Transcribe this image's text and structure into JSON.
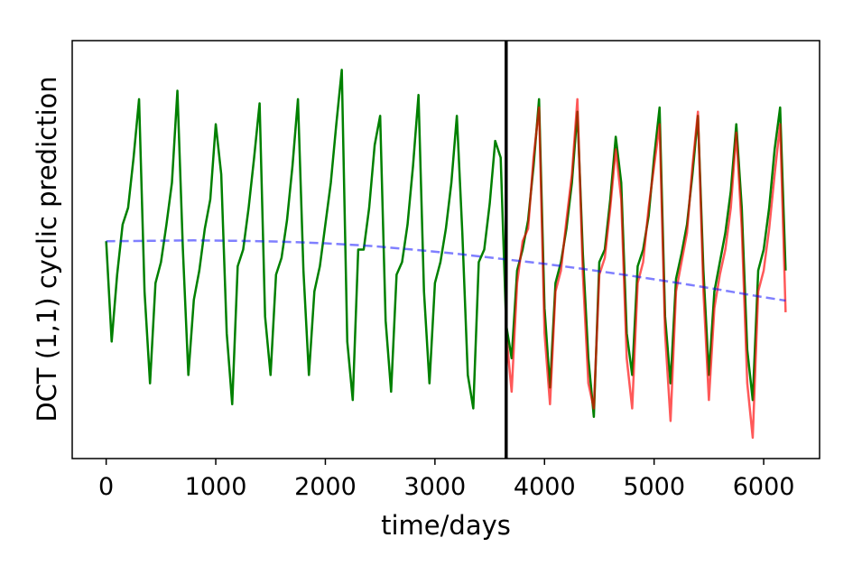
{
  "chart_data": {
    "type": "line",
    "xlabel": "time/days",
    "ylabel": "DCT (1,1) cyclic prediction",
    "xlim": [
      -310,
      6510
    ],
    "ylim": [
      0,
      1
    ],
    "xticks": [
      0,
      1000,
      2000,
      3000,
      4000,
      5000,
      6000
    ],
    "vline": 3650,
    "series": [
      {
        "color": "#008000",
        "opacity": 1,
        "style": "solid",
        "x": [
          0,
          50,
          100,
          150,
          200,
          250,
          300,
          350,
          400,
          450,
          500,
          550,
          600,
          650,
          700,
          750,
          800,
          850,
          900,
          950,
          1000,
          1050,
          1100,
          1150,
          1200,
          1250,
          1300,
          1350,
          1400,
          1450,
          1500,
          1550,
          1600,
          1650,
          1700,
          1750,
          1800,
          1850,
          1900,
          1950,
          2000,
          2050,
          2100,
          2150,
          2200,
          2250,
          2300,
          2350,
          2400,
          2450,
          2500,
          2550,
          2600,
          2650,
          2700,
          2750,
          2800,
          2850,
          2900,
          2950,
          3000,
          3050,
          3100,
          3150,
          3200,
          3250,
          3300,
          3350,
          3400,
          3450,
          3500,
          3550,
          3600,
          3650,
          3700,
          3750,
          3800,
          3850,
          3900,
          3950,
          4000,
          4050,
          4100,
          4150,
          4200,
          4250,
          4300,
          4350,
          4400,
          4450,
          4500,
          4550,
          4600,
          4650,
          4700,
          4750,
          4800,
          4850,
          4900,
          4950,
          5000,
          5050,
          5100,
          5150,
          5200,
          5250,
          5300,
          5350,
          5400,
          5450,
          5500,
          5550,
          5600,
          5650,
          5700,
          5750,
          5800,
          5850,
          5900,
          5950,
          6000,
          6050,
          6100,
          6150,
          6200
        ],
        "values": [
          0.52,
          0.28,
          0.44,
          0.56,
          0.6,
          0.72,
          0.86,
          0.4,
          0.18,
          0.42,
          0.47,
          0.56,
          0.66,
          0.88,
          0.5,
          0.2,
          0.38,
          0.45,
          0.55,
          0.62,
          0.8,
          0.68,
          0.3,
          0.13,
          0.46,
          0.5,
          0.6,
          0.72,
          0.85,
          0.34,
          0.2,
          0.44,
          0.48,
          0.57,
          0.7,
          0.86,
          0.45,
          0.2,
          0.4,
          0.46,
          0.56,
          0.66,
          0.8,
          0.93,
          0.28,
          0.14,
          0.5,
          0.5,
          0.6,
          0.75,
          0.82,
          0.33,
          0.16,
          0.44,
          0.47,
          0.56,
          0.7,
          0.87,
          0.4,
          0.18,
          0.42,
          0.47,
          0.55,
          0.66,
          0.82,
          0.54,
          0.2,
          0.12,
          0.47,
          0.5,
          0.61,
          0.76,
          0.72,
          0.32,
          0.24,
          0.45,
          0.5,
          0.57,
          0.7,
          0.86,
          0.36,
          0.17,
          0.42,
          0.47,
          0.55,
          0.66,
          0.83,
          0.49,
          0.24,
          0.1,
          0.47,
          0.5,
          0.62,
          0.77,
          0.66,
          0.3,
          0.2,
          0.46,
          0.5,
          0.58,
          0.72,
          0.84,
          0.34,
          0.18,
          0.43,
          0.49,
          0.56,
          0.68,
          0.82,
          0.45,
          0.2,
          0.4,
          0.47,
          0.54,
          0.64,
          0.8,
          0.6,
          0.26,
          0.14,
          0.45,
          0.5,
          0.6,
          0.74,
          0.84,
          0.45
        ]
      },
      {
        "color": "#ff0000",
        "opacity": 0.65,
        "style": "solid",
        "x": [
          3650,
          3700,
          3750,
          3800,
          3850,
          3900,
          3950,
          4000,
          4050,
          4100,
          4150,
          4200,
          4250,
          4300,
          4350,
          4400,
          4450,
          4500,
          4550,
          4600,
          4650,
          4700,
          4750,
          4800,
          4850,
          4900,
          4950,
          5000,
          5050,
          5100,
          5150,
          5200,
          5250,
          5300,
          5350,
          5400,
          5450,
          5500,
          5550,
          5600,
          5650,
          5700,
          5750,
          5800,
          5850,
          5900,
          5950,
          6000,
          6050,
          6100,
          6150,
          6200
        ],
        "values": [
          0.3,
          0.16,
          0.42,
          0.52,
          0.55,
          0.72,
          0.84,
          0.3,
          0.13,
          0.4,
          0.45,
          0.57,
          0.68,
          0.86,
          0.44,
          0.18,
          0.12,
          0.44,
          0.48,
          0.6,
          0.74,
          0.62,
          0.24,
          0.12,
          0.42,
          0.47,
          0.6,
          0.7,
          0.8,
          0.3,
          0.09,
          0.4,
          0.47,
          0.54,
          0.7,
          0.83,
          0.4,
          0.14,
          0.36,
          0.44,
          0.5,
          0.6,
          0.78,
          0.55,
          0.18,
          0.05,
          0.4,
          0.45,
          0.55,
          0.68,
          0.8,
          0.35
        ]
      },
      {
        "color": "#0000ff",
        "opacity": 0.5,
        "style": "dashed",
        "x": [
          0,
          400,
          800,
          1200,
          1600,
          2000,
          2400,
          2800,
          3200,
          3600,
          4000,
          4400,
          4800,
          5200,
          5600,
          6000,
          6200
        ],
        "values": [
          0.52,
          0.521,
          0.522,
          0.521,
          0.519,
          0.515,
          0.509,
          0.5,
          0.49,
          0.478,
          0.466,
          0.452,
          0.437,
          0.421,
          0.404,
          0.386,
          0.378
        ]
      }
    ]
  }
}
